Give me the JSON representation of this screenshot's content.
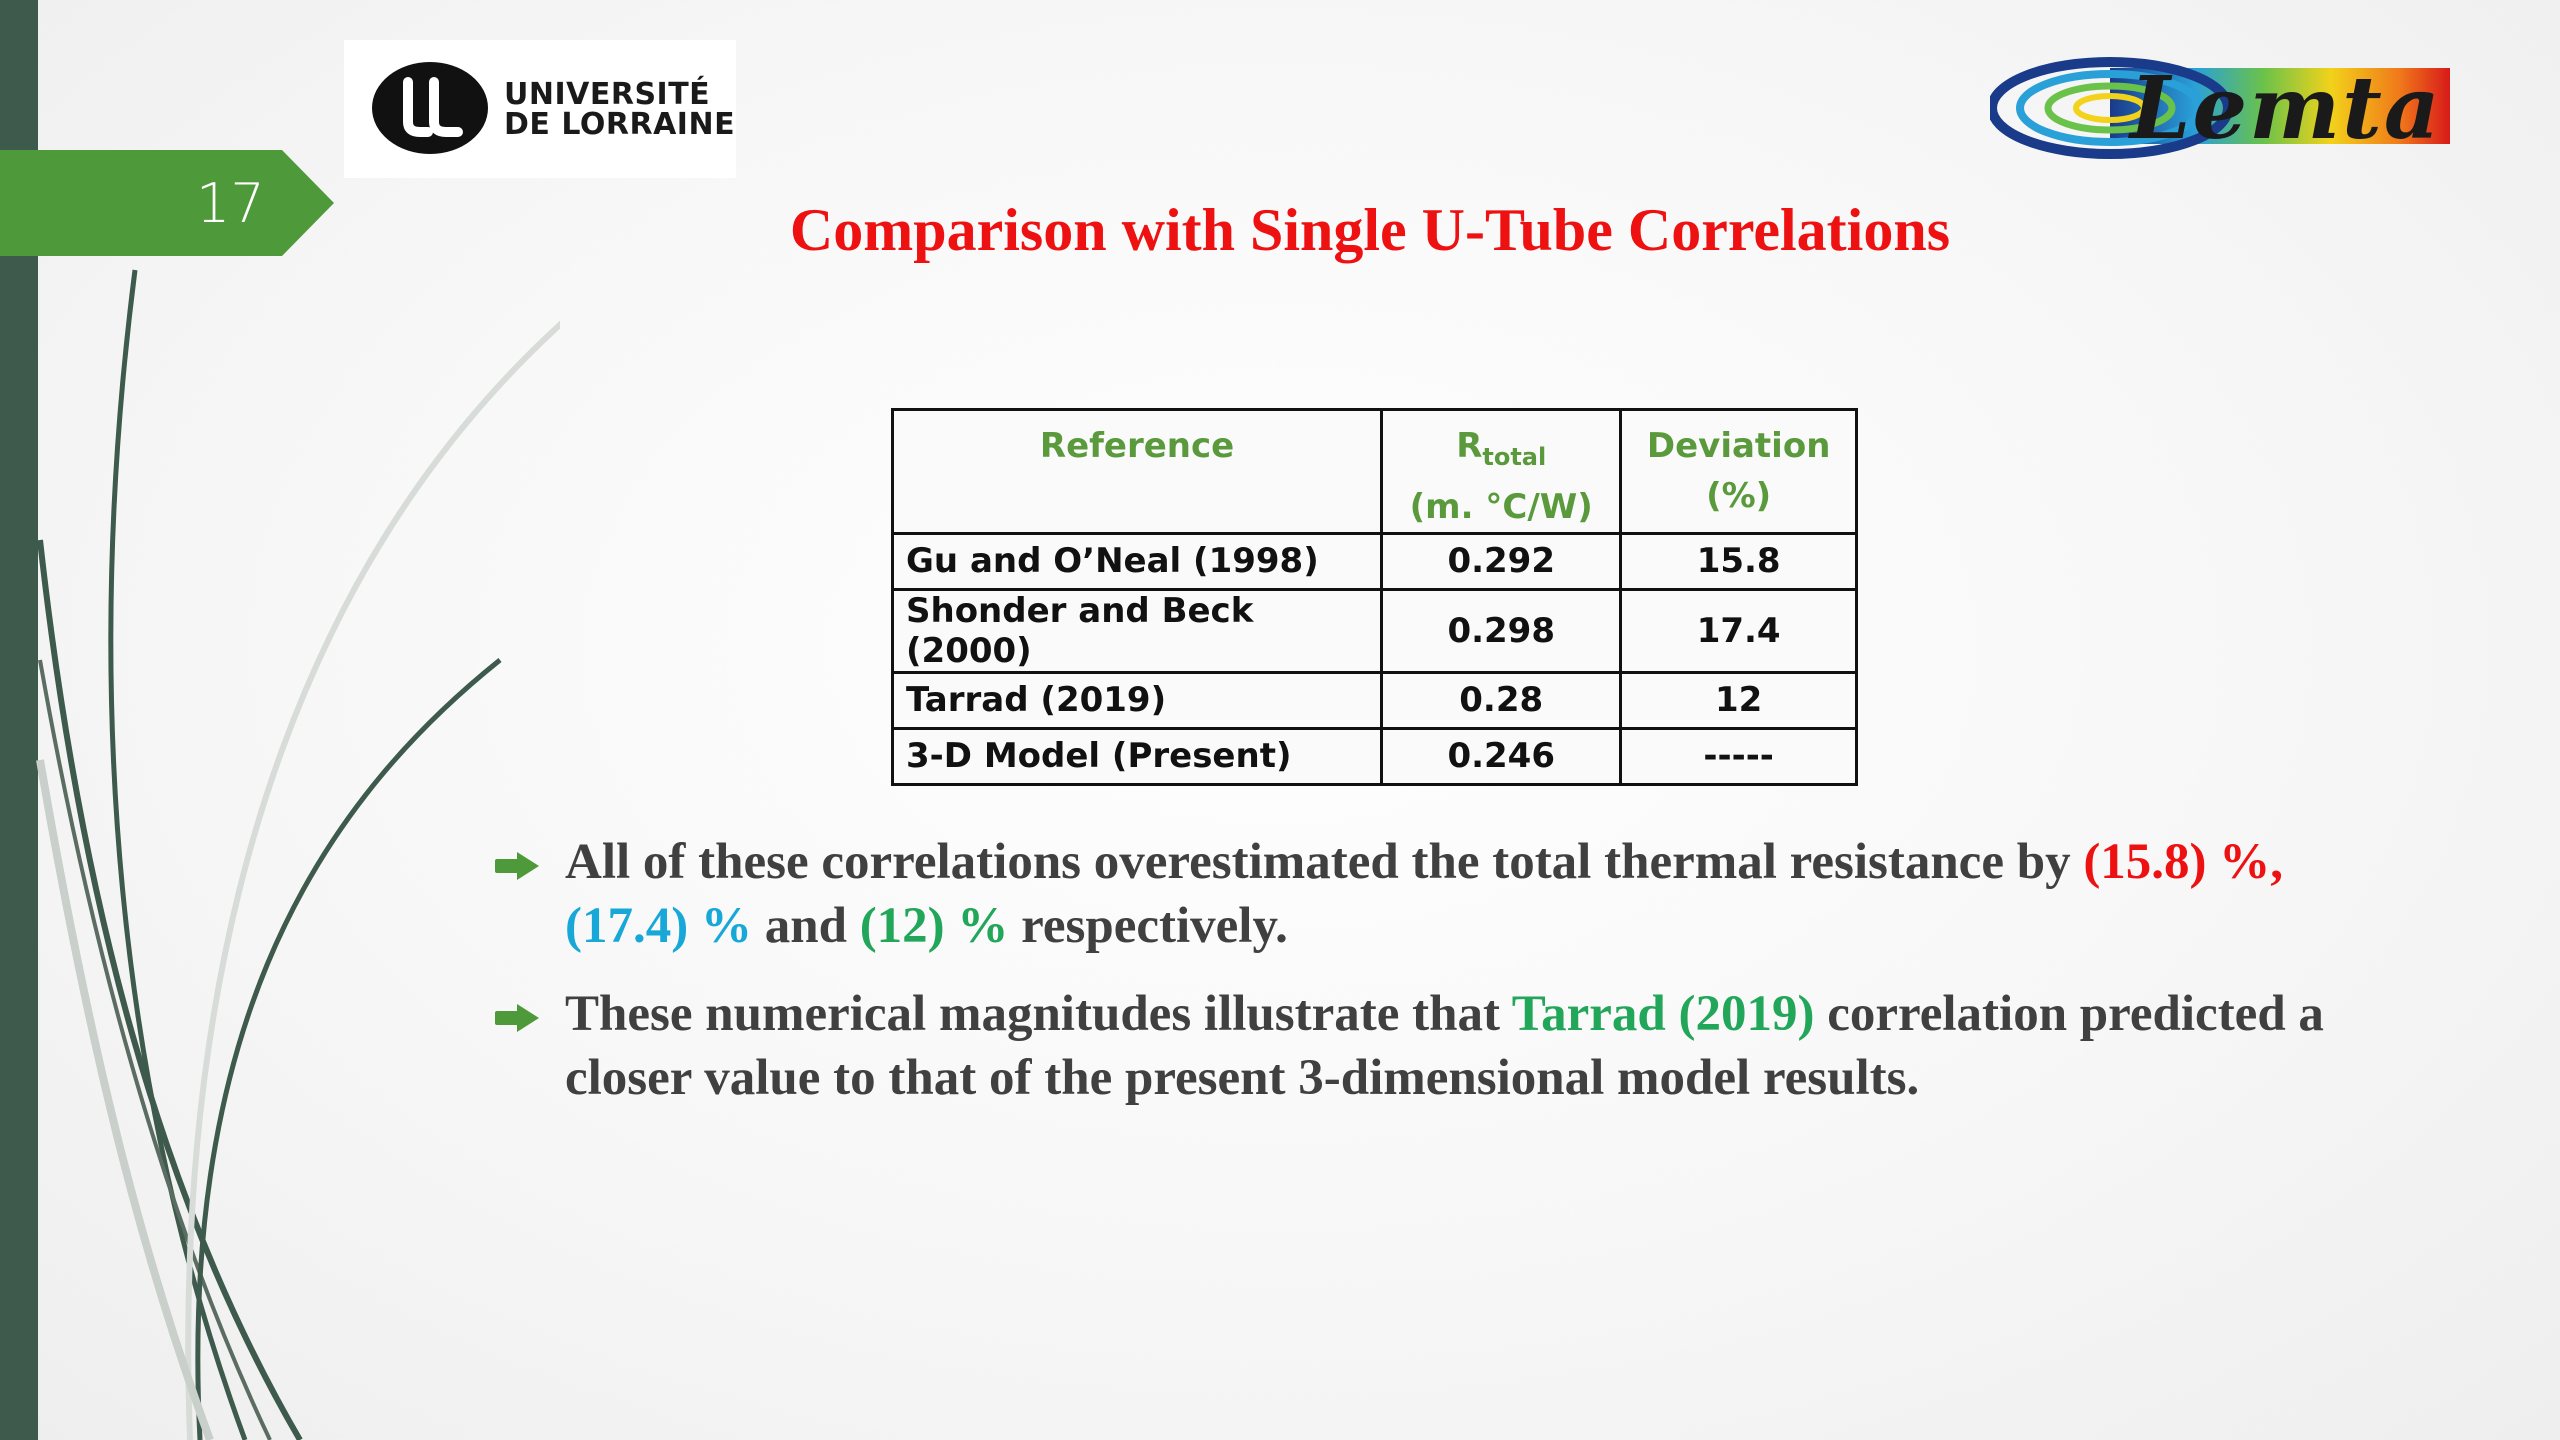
{
  "slide_number": "17",
  "logo_ul": {
    "line1": "UNIVERSITÉ",
    "line2": "DE LORRAINE"
  },
  "logo_lemta": {
    "text": "Lemta"
  },
  "title": "Comparison with Single U-Tube Correlations",
  "table": {
    "headers": {
      "reference": "Reference",
      "rtotal_main": "R",
      "rtotal_sub": "total",
      "rtotal_unit": "(m. °C/W)",
      "deviation": "Deviation",
      "deviation_unit": "(%)"
    },
    "rows": [
      {
        "reference": "Gu and O’Neal (1998)",
        "rtotal": "0.292",
        "deviation": "15.8"
      },
      {
        "reference": "Shonder and Beck (2000)",
        "rtotal": "0.298",
        "deviation": "17.4"
      },
      {
        "reference": "Tarrad (2019)",
        "rtotal": "0.28",
        "deviation": "12"
      },
      {
        "reference": "3-D Model (Present)",
        "rtotal": "0.246",
        "deviation": "-----"
      }
    ]
  },
  "bullets": [
    {
      "p1": "All of these correlations overestimated the total thermal resistance by ",
      "v1": "(15.8) %",
      "s1": ", ",
      "v2": "(17.4) %",
      "p2": " and ",
      "v3": "(12) %",
      "p3": " respectively."
    },
    {
      "p1": "These numerical magnitudes illustrate that ",
      "v1": "Tarrad (2019)",
      "p2": " correlation predicted a closer value to that of the present 3-dimensional model results."
    }
  ],
  "colors": {
    "title": "#ee1111",
    "accent_green": "#5a9a3c",
    "dark_green_bar": "#3d5a4c",
    "tab_green": "#4e9a3a",
    "highlight_red": "#ee1111",
    "highlight_cyan": "#18a8d8",
    "highlight_green": "#22a65a"
  },
  "icons": {
    "bullet": "arrow-right-icon"
  }
}
